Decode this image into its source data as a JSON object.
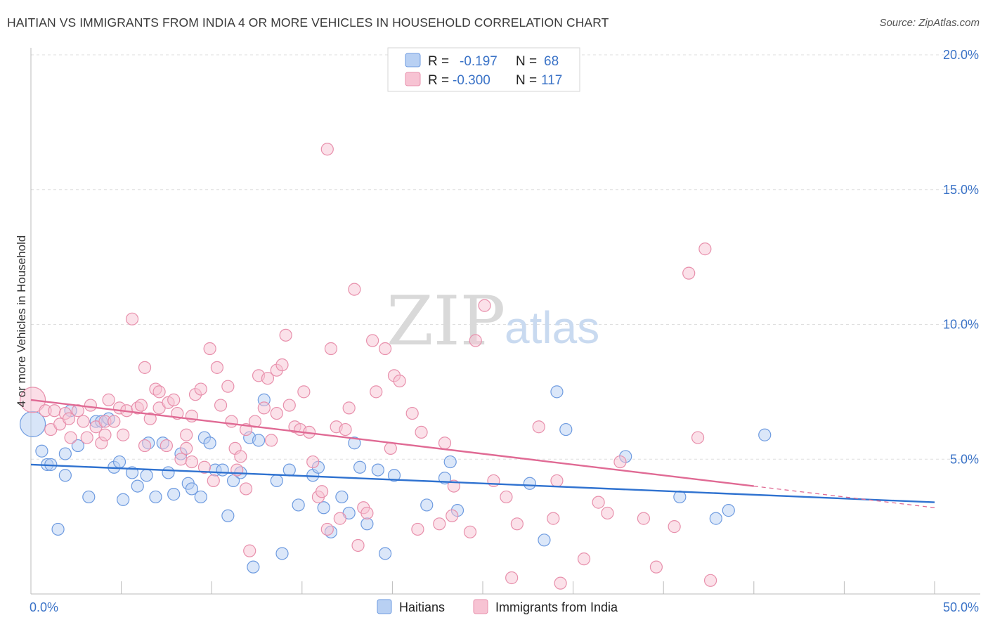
{
  "title": "HAITIAN VS IMMIGRANTS FROM INDIA 4 OR MORE VEHICLES IN HOUSEHOLD CORRELATION CHART",
  "source": "Source: ZipAtlas.com",
  "watermark": {
    "zip": "ZIP",
    "atlas": "atlas"
  },
  "legend": {
    "row1": {
      "r_label": "R =",
      "r_value": "-0.197",
      "n_label": "N =",
      "n_value": "68"
    },
    "row2": {
      "r_label": "R =",
      "r_value": "-0.300",
      "n_label": "N =",
      "n_value": "117"
    }
  },
  "bottom_legend": [
    "Haitians",
    "Immigrants from India"
  ],
  "chart_data": {
    "type": "scatter",
    "title": "HAITIAN VS IMMIGRANTS FROM INDIA 4 OR MORE VEHICLES IN HOUSEHOLD CORRELATION CHART",
    "xlabel": "",
    "ylabel": "4 or more Vehicles in Household",
    "xlim": [
      0,
      50
    ],
    "ylim": [
      0,
      20
    ],
    "x_tick_labels": [
      "0.0%",
      "50.0%"
    ],
    "y_ticks": [
      5,
      10,
      15,
      20
    ],
    "y_tick_labels": [
      "5.0%",
      "10.0%",
      "15.0%",
      "20.0%"
    ],
    "grid": true,
    "legend_position": "top-center",
    "colors": {
      "haitians_fill": "#b8d0f3",
      "haitians_stroke": "#6e9be0",
      "haitians_line": "#2f72d0",
      "india_fill": "#f7c3d3",
      "india_stroke": "#e890ac",
      "india_line": "#e06a94",
      "tick": "#3b73c7",
      "grid": "#dddddd"
    },
    "series": [
      {
        "name": "Haitians",
        "r": -0.197,
        "n": 68,
        "trend": {
          "x0": 0,
          "y0": 4.8,
          "x1": 50,
          "y1": 3.4
        },
        "points": [
          [
            0.1,
            6.3
          ],
          [
            0.6,
            5.3
          ],
          [
            0.9,
            4.8
          ],
          [
            1.1,
            4.8
          ],
          [
            1.5,
            2.4
          ],
          [
            1.9,
            4.4
          ],
          [
            1.9,
            5.2
          ],
          [
            2.2,
            6.8
          ],
          [
            2.6,
            5.5
          ],
          [
            3.2,
            3.6
          ],
          [
            3.6,
            6.4
          ],
          [
            3.9,
            6.4
          ],
          [
            4.3,
            6.5
          ],
          [
            4.6,
            4.7
          ],
          [
            4.9,
            4.9
          ],
          [
            5.1,
            3.5
          ],
          [
            5.6,
            4.5
          ],
          [
            5.9,
            4.0
          ],
          [
            6.4,
            4.4
          ],
          [
            6.5,
            5.6
          ],
          [
            6.9,
            3.6
          ],
          [
            7.3,
            5.6
          ],
          [
            7.6,
            4.5
          ],
          [
            7.9,
            3.7
          ],
          [
            8.3,
            5.2
          ],
          [
            8.7,
            4.1
          ],
          [
            8.9,
            3.9
          ],
          [
            9.4,
            3.6
          ],
          [
            9.6,
            5.8
          ],
          [
            9.9,
            5.6
          ],
          [
            10.2,
            4.6
          ],
          [
            10.6,
            4.6
          ],
          [
            10.9,
            2.9
          ],
          [
            11.2,
            4.2
          ],
          [
            11.6,
            4.5
          ],
          [
            12.1,
            5.8
          ],
          [
            12.3,
            1.0
          ],
          [
            12.6,
            5.7
          ],
          [
            12.9,
            7.2
          ],
          [
            13.6,
            4.2
          ],
          [
            13.9,
            1.5
          ],
          [
            14.3,
            4.6
          ],
          [
            14.8,
            3.3
          ],
          [
            15.6,
            4.4
          ],
          [
            15.9,
            4.7
          ],
          [
            16.2,
            3.2
          ],
          [
            16.6,
            2.3
          ],
          [
            17.2,
            3.6
          ],
          [
            17.6,
            3.0
          ],
          [
            17.9,
            5.6
          ],
          [
            18.2,
            4.7
          ],
          [
            18.6,
            2.6
          ],
          [
            19.2,
            4.6
          ],
          [
            19.6,
            1.5
          ],
          [
            20.1,
            4.4
          ],
          [
            21.9,
            3.3
          ],
          [
            22.9,
            4.3
          ],
          [
            23.2,
            4.9
          ],
          [
            23.6,
            3.1
          ],
          [
            27.6,
            4.1
          ],
          [
            28.4,
            2.0
          ],
          [
            29.1,
            7.5
          ],
          [
            29.6,
            6.1
          ],
          [
            32.9,
            5.1
          ],
          [
            35.9,
            3.6
          ],
          [
            37.9,
            2.8
          ],
          [
            38.6,
            3.1
          ],
          [
            40.6,
            5.9
          ]
        ]
      },
      {
        "name": "Immigrants from India",
        "r": -0.3,
        "n": 117,
        "trend": {
          "x0": 0,
          "y0": 7.2,
          "x1": 50,
          "y1": 3.2
        },
        "points": [
          [
            0.1,
            7.2
          ],
          [
            0.8,
            6.8
          ],
          [
            1.1,
            6.1
          ],
          [
            1.3,
            6.8
          ],
          [
            1.6,
            6.3
          ],
          [
            1.9,
            6.7
          ],
          [
            2.1,
            6.5
          ],
          [
            2.2,
            5.8
          ],
          [
            2.6,
            6.8
          ],
          [
            2.9,
            6.4
          ],
          [
            3.1,
            5.8
          ],
          [
            3.3,
            7.0
          ],
          [
            3.6,
            6.2
          ],
          [
            3.9,
            5.6
          ],
          [
            4.1,
            5.9
          ],
          [
            4.1,
            6.4
          ],
          [
            4.3,
            7.2
          ],
          [
            4.6,
            6.4
          ],
          [
            4.9,
            6.9
          ],
          [
            5.1,
            5.9
          ],
          [
            5.3,
            6.8
          ],
          [
            5.6,
            10.2
          ],
          [
            5.9,
            6.9
          ],
          [
            6.1,
            7.0
          ],
          [
            6.3,
            5.5
          ],
          [
            6.3,
            8.4
          ],
          [
            6.6,
            6.5
          ],
          [
            6.9,
            7.6
          ],
          [
            7.1,
            6.9
          ],
          [
            7.1,
            7.5
          ],
          [
            7.5,
            5.5
          ],
          [
            7.6,
            7.1
          ],
          [
            7.9,
            7.2
          ],
          [
            8.1,
            6.7
          ],
          [
            8.3,
            5.0
          ],
          [
            8.6,
            5.4
          ],
          [
            8.6,
            5.9
          ],
          [
            8.9,
            4.9
          ],
          [
            8.9,
            6.6
          ],
          [
            9.1,
            7.4
          ],
          [
            9.4,
            7.6
          ],
          [
            9.6,
            4.7
          ],
          [
            9.9,
            9.1
          ],
          [
            10.1,
            4.2
          ],
          [
            10.3,
            8.4
          ],
          [
            10.5,
            7.0
          ],
          [
            10.9,
            7.7
          ],
          [
            11.1,
            6.4
          ],
          [
            11.3,
            5.4
          ],
          [
            11.4,
            4.6
          ],
          [
            11.6,
            5.1
          ],
          [
            11.9,
            6.1
          ],
          [
            11.9,
            3.9
          ],
          [
            12.1,
            1.6
          ],
          [
            12.4,
            6.4
          ],
          [
            12.6,
            8.1
          ],
          [
            12.9,
            6.9
          ],
          [
            13.1,
            8.0
          ],
          [
            13.3,
            5.7
          ],
          [
            13.6,
            8.3
          ],
          [
            13.6,
            6.7
          ],
          [
            13.9,
            8.5
          ],
          [
            14.1,
            9.6
          ],
          [
            14.3,
            7.0
          ],
          [
            14.6,
            6.2
          ],
          [
            14.9,
            6.1
          ],
          [
            15.1,
            7.5
          ],
          [
            15.4,
            6.0
          ],
          [
            15.6,
            4.9
          ],
          [
            15.9,
            3.6
          ],
          [
            16.1,
            3.8
          ],
          [
            16.4,
            16.5
          ],
          [
            16.4,
            2.4
          ],
          [
            16.6,
            9.1
          ],
          [
            16.9,
            6.2
          ],
          [
            17.1,
            2.8
          ],
          [
            17.4,
            6.1
          ],
          [
            17.6,
            6.9
          ],
          [
            17.9,
            11.3
          ],
          [
            18.1,
            1.8
          ],
          [
            18.4,
            3.2
          ],
          [
            18.6,
            3.0
          ],
          [
            18.9,
            9.4
          ],
          [
            19.1,
            7.5
          ],
          [
            19.6,
            9.1
          ],
          [
            19.9,
            5.4
          ],
          [
            20.1,
            8.1
          ],
          [
            20.4,
            7.9
          ],
          [
            21.1,
            6.7
          ],
          [
            21.4,
            2.4
          ],
          [
            21.6,
            6.0
          ],
          [
            22.6,
            2.6
          ],
          [
            22.9,
            5.6
          ],
          [
            23.3,
            2.9
          ],
          [
            23.4,
            4.0
          ],
          [
            24.3,
            2.3
          ],
          [
            24.6,
            9.4
          ],
          [
            25.1,
            10.7
          ],
          [
            25.6,
            4.2
          ],
          [
            26.3,
            3.6
          ],
          [
            26.6,
            0.6
          ],
          [
            26.9,
            2.6
          ],
          [
            28.1,
            6.2
          ],
          [
            28.9,
            2.8
          ],
          [
            29.1,
            4.2
          ],
          [
            29.3,
            0.4
          ],
          [
            30.6,
            1.3
          ],
          [
            31.4,
            3.4
          ],
          [
            31.9,
            3.0
          ],
          [
            32.6,
            4.9
          ],
          [
            33.9,
            2.8
          ],
          [
            34.6,
            1.0
          ],
          [
            35.6,
            2.5
          ],
          [
            36.4,
            11.9
          ],
          [
            36.9,
            5.8
          ],
          [
            37.3,
            12.8
          ],
          [
            37.6,
            0.5
          ]
        ]
      }
    ]
  }
}
